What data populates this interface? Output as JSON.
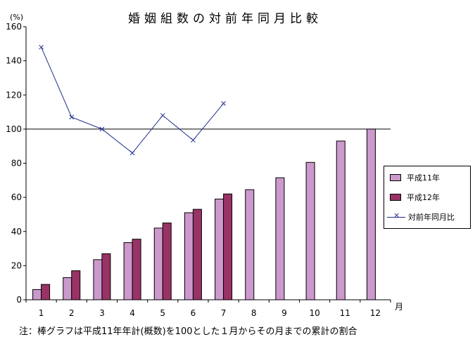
{
  "chart_data": {
    "type": "bar",
    "title": "婚姻組数の対前年同月比較",
    "y_unit": "(%)",
    "x_unit": "月",
    "categories": [
      "1",
      "2",
      "3",
      "4",
      "5",
      "6",
      "7",
      "8",
      "9",
      "10",
      "11",
      "12"
    ],
    "ylim": [
      0,
      160
    ],
    "yticks": [
      0,
      20,
      40,
      60,
      80,
      100,
      120,
      140,
      160
    ],
    "reference_line": 100,
    "series": [
      {
        "name": "平成11年",
        "type": "bar",
        "color": "#cc99cc",
        "values": [
          6,
          13,
          23.5,
          33.5,
          42,
          51,
          59,
          64.5,
          71.5,
          80.5,
          93,
          100
        ]
      },
      {
        "name": "平成12年",
        "type": "bar",
        "color": "#993366",
        "values": [
          9,
          17,
          27,
          35.5,
          45,
          53,
          62,
          null,
          null,
          null,
          null,
          null
        ]
      },
      {
        "name": "対前年同月比",
        "type": "line",
        "color": "#1f2d8c",
        "marker": "x",
        "values": [
          148,
          107,
          100,
          86,
          108,
          93.5,
          115,
          null,
          null,
          null,
          null,
          null
        ]
      }
    ],
    "legend_position": "right",
    "note": "注：棒グラフは平成11年年計(概数)を100とした１月からその月までの累計の割合"
  }
}
